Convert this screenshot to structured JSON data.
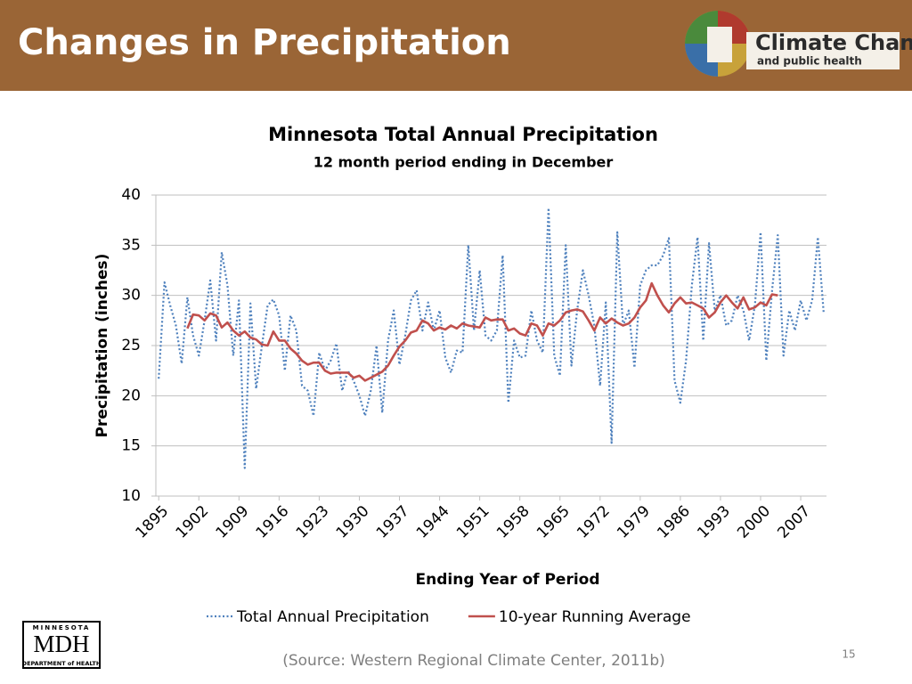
{
  "header": {
    "title": "Changes in Precipitation",
    "logo_title": "Climate Change",
    "logo_subtitle": "and public health"
  },
  "chart_data": {
    "type": "line",
    "title": "Minnesota Total Annual Precipitation",
    "subtitle": "12 month period ending in December",
    "x_label": "Ending Year of Period",
    "y_label": "Precipitation (inches)",
    "x": [
      1895,
      1896,
      1897,
      1898,
      1899,
      1900,
      1901,
      1902,
      1903,
      1904,
      1905,
      1906,
      1907,
      1908,
      1909,
      1910,
      1911,
      1912,
      1913,
      1914,
      1915,
      1916,
      1917,
      1918,
      1919,
      1920,
      1921,
      1922,
      1923,
      1924,
      1925,
      1926,
      1927,
      1928,
      1929,
      1930,
      1931,
      1932,
      1933,
      1934,
      1935,
      1936,
      1937,
      1938,
      1939,
      1940,
      1941,
      1942,
      1943,
      1944,
      1945,
      1946,
      1947,
      1948,
      1949,
      1950,
      1951,
      1952,
      1953,
      1954,
      1955,
      1956,
      1957,
      1958,
      1959,
      1960,
      1961,
      1962,
      1963,
      1964,
      1965,
      1966,
      1967,
      1968,
      1969,
      1970,
      1971,
      1972,
      1973,
      1974,
      1975,
      1976,
      1977,
      1978,
      1979,
      1980,
      1981,
      1982,
      1983,
      1984,
      1985,
      1986,
      1987,
      1988,
      1989,
      1990,
      1991,
      1992,
      1993,
      1994,
      1995,
      1996,
      1997,
      1998,
      1999,
      2000,
      2001,
      2002,
      2003,
      2004,
      2005,
      2006,
      2007,
      2008,
      2009,
      2010,
      2011
    ],
    "series": [
      {
        "name": "Total Annual Precipitation",
        "color": "#4f81bd",
        "style": "dotted",
        "values": [
          21.7,
          31.3,
          29,
          27,
          23.2,
          29.8,
          26,
          24,
          27.5,
          31.5,
          25.5,
          34.3,
          31,
          24,
          29.5,
          12.8,
          29.2,
          20.7,
          25,
          29,
          29.6,
          28,
          22.5,
          28,
          26.5,
          21,
          20.5,
          18,
          24.3,
          22.5,
          23.5,
          25.2,
          20.5,
          22.5,
          21.5,
          20,
          18,
          20.5,
          25,
          18.3,
          25.5,
          28.5,
          23.1,
          26,
          29.5,
          30.5,
          26.5,
          29.3,
          26.5,
          28.5,
          23.8,
          22.3,
          24.5,
          24.3,
          35,
          26.5,
          32.5,
          26,
          25.5,
          26.5,
          34,
          19.3,
          25.5,
          23.8,
          24,
          28.5,
          25.5,
          24.3,
          38.7,
          24,
          22,
          35,
          23,
          28.5,
          32.5,
          30,
          27,
          21,
          29.3,
          15.3,
          36.3,
          27,
          28.5,
          22.8,
          31,
          32.5,
          33,
          33,
          34,
          35.7,
          21.5,
          19.3,
          23.5,
          31,
          35.8,
          25.5,
          35.2,
          28.5,
          30,
          27,
          27.5,
          30,
          28.5,
          25.5,
          29,
          36.3,
          23.5,
          30.5,
          36,
          24,
          28.5,
          26.5,
          29.5,
          27.5,
          29.5,
          35.8,
          28.3
        ]
      },
      {
        "name": "10-year Running Average",
        "color": "#c0504d",
        "style": "solid",
        "values": [
          null,
          null,
          null,
          null,
          null,
          26.7,
          28.1,
          28.0,
          27.5,
          28.2,
          28.0,
          26.8,
          27.3,
          26.5,
          26.0,
          26.4,
          25.8,
          25.6,
          25.1,
          25.0,
          26.4,
          25.5,
          25.5,
          24.7,
          24.2,
          23.5,
          23.1,
          23.3,
          23.3,
          22.5,
          22.2,
          22.3,
          22.3,
          22.3,
          21.8,
          22.0,
          21.5,
          21.8,
          22.1,
          22.4,
          23.0,
          24.0,
          24.9,
          25.5,
          26.3,
          26.5,
          27.5,
          27.2,
          26.5,
          26.8,
          26.6,
          27.0,
          26.7,
          27.2,
          27.0,
          26.9,
          26.8,
          27.8,
          27.5,
          27.6,
          27.6,
          26.5,
          26.7,
          26.2,
          26.0,
          27.2,
          27.0,
          26.0,
          27.2,
          27.0,
          27.5,
          28.3,
          28.5,
          28.6,
          28.4,
          27.5,
          26.5,
          27.8,
          27.2,
          27.7,
          27.3,
          27.0,
          27.2,
          27.8,
          28.8,
          29.5,
          31.2,
          30.0,
          29.0,
          28.3,
          29.2,
          29.8,
          29.2,
          29.3,
          29.0,
          28.7,
          27.8,
          28.3,
          29.3,
          30.0,
          29.3,
          28.7,
          29.8,
          28.6,
          28.8,
          29.3,
          29.0,
          30.1,
          30.0,
          null,
          null,
          null,
          null,
          null,
          null,
          null,
          null
        ]
      }
    ],
    "xlim": [
      1894.5,
      2011.5
    ],
    "xticks": [
      1895,
      1902,
      1909,
      1916,
      1923,
      1930,
      1937,
      1944,
      1951,
      1958,
      1965,
      1972,
      1979,
      1986,
      1993,
      2000,
      2007
    ],
    "ylim": [
      10,
      40
    ],
    "yticks": [
      10,
      15,
      20,
      25,
      30,
      35,
      40
    ],
    "grid": true,
    "legend": "bottom"
  },
  "footer": {
    "source": "(Source: Western Regional Climate Center, 2011b)",
    "page_number": "15",
    "mdh_top": "MINNESOTA",
    "mdh_main": "MDH",
    "mdh_bottom": "DEPARTMENT of HEALTH"
  }
}
